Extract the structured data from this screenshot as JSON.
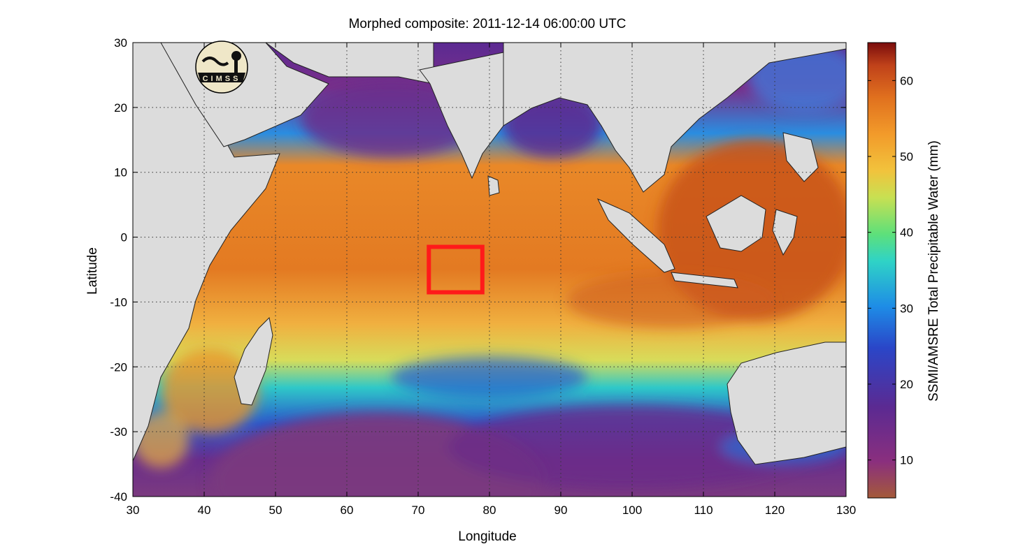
{
  "chart_data": {
    "type": "heatmap",
    "title": "Morphed composite: 2011-12-14 06:00:00 UTC",
    "xlabel": "Longitude",
    "ylabel": "Latitude",
    "xlim": [
      30,
      130
    ],
    "ylim": [
      -40,
      30
    ],
    "x_ticks": [
      "30",
      "40",
      "50",
      "60",
      "70",
      "80",
      "90",
      "100",
      "110",
      "120",
      "130"
    ],
    "y_ticks": [
      "30",
      "20",
      "10",
      "0",
      "-10",
      "-20",
      "-30",
      "-40"
    ],
    "grid": "dotted",
    "colorbar": {
      "label": "SSMI/AMSRE Total Precipitable Water (mm)",
      "range": [
        5,
        65
      ],
      "ticks": [
        "60",
        "50",
        "40",
        "30",
        "20",
        "10"
      ],
      "colors": [
        "#a45a3a",
        "#8a2f7e",
        "#5b2a92",
        "#2a46c8",
        "#1e8ce6",
        "#2fd3c6",
        "#5ee07a",
        "#c8e052",
        "#f2c23c",
        "#f29a2a",
        "#e0701e",
        "#c0421a",
        "#7a0c0c"
      ]
    },
    "highlight_box": {
      "lon": [
        71.5,
        79
      ],
      "lat": [
        -8.5,
        -1.5
      ],
      "color": "#ff1a1a"
    },
    "logo": "CIMSS",
    "land_color": "#dcdcdc"
  }
}
